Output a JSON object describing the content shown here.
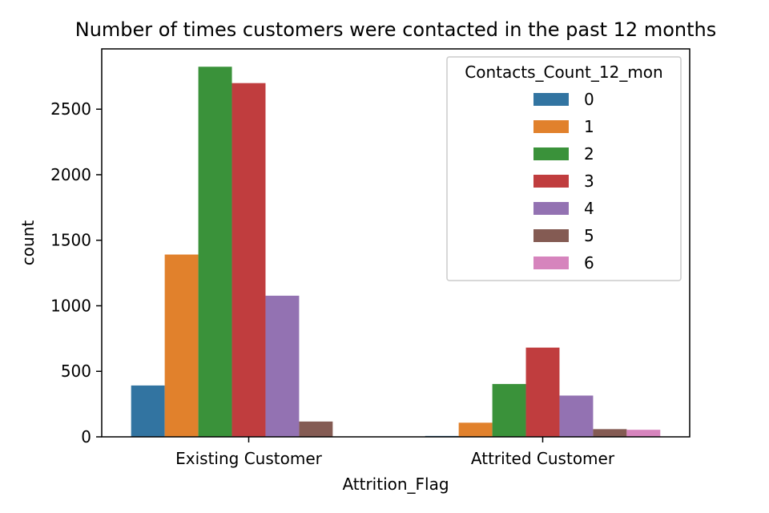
{
  "chart_data": {
    "type": "bar",
    "title": "Number of times customers were contacted in the past 12 months",
    "xlabel": "Attrition_Flag",
    "ylabel": "count",
    "categories": [
      "Existing Customer",
      "Attrited Customer"
    ],
    "ylim": [
      0,
      2960
    ],
    "yticks": [
      0,
      500,
      1000,
      1500,
      2000,
      2500
    ],
    "grid": false,
    "legend": {
      "title": "Contacts_Count_12_mon",
      "placement": "top-right"
    },
    "series": [
      {
        "name": "0",
        "color": "#3274a1",
        "values": [
          392,
          7
        ]
      },
      {
        "name": "1",
        "color": "#e1812c",
        "values": [
          1391,
          108
        ]
      },
      {
        "name": "2",
        "color": "#3a923a",
        "values": [
          2824,
          403
        ]
      },
      {
        "name": "3",
        "color": "#c03d3e",
        "values": [
          2699,
          681
        ]
      },
      {
        "name": "4",
        "color": "#9372b2",
        "values": [
          1077,
          315
        ]
      },
      {
        "name": "5",
        "color": "#845b53",
        "values": [
          117,
          59
        ]
      },
      {
        "name": "6",
        "color": "#d684bd",
        "values": [
          0,
          54
        ]
      }
    ]
  }
}
